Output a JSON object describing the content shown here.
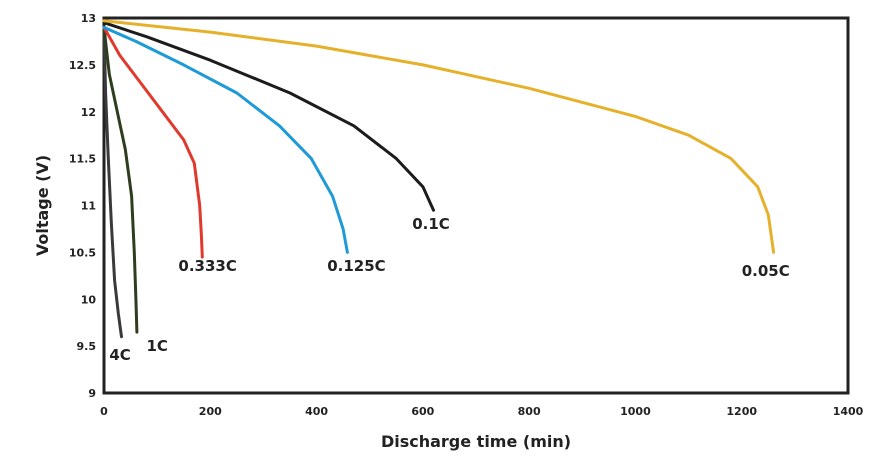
{
  "chart_data": {
    "type": "line",
    "title": "",
    "xlabel": "Discharge time (min)",
    "ylabel": "Voltage (V)",
    "xlim": [
      0,
      1400
    ],
    "ylim": [
      9,
      13
    ],
    "xticks": [
      0,
      200,
      400,
      600,
      800,
      1000,
      1200,
      1400
    ],
    "yticks": [
      9,
      9.5,
      10,
      10.5,
      11,
      11.5,
      12,
      12.5,
      13
    ],
    "grid": false,
    "legend": "none",
    "series": [
      {
        "name": "4C",
        "color": "#3a3a3a",
        "points": [
          [
            0,
            12.9
          ],
          [
            3,
            12.2
          ],
          [
            8,
            11.5
          ],
          [
            14,
            10.8
          ],
          [
            20,
            10.2
          ],
          [
            27,
            9.85
          ],
          [
            33,
            9.6
          ]
        ]
      },
      {
        "name": "1C",
        "color": "#2e3d1e",
        "points": [
          [
            0,
            12.9
          ],
          [
            10,
            12.4
          ],
          [
            25,
            12.0
          ],
          [
            40,
            11.6
          ],
          [
            52,
            11.1
          ],
          [
            57,
            10.5
          ],
          [
            60,
            10.0
          ],
          [
            62,
            9.65
          ]
        ]
      },
      {
        "name": "0.333C",
        "color": "#e03a2e",
        "points": [
          [
            0,
            12.9
          ],
          [
            30,
            12.6
          ],
          [
            70,
            12.3
          ],
          [
            110,
            12.0
          ],
          [
            150,
            11.7
          ],
          [
            170,
            11.45
          ],
          [
            180,
            11.0
          ],
          [
            183,
            10.7
          ],
          [
            185,
            10.45
          ]
        ]
      },
      {
        "name": "0.125C",
        "color": "#1e9ad6",
        "points": [
          [
            0,
            12.9
          ],
          [
            60,
            12.75
          ],
          [
            150,
            12.5
          ],
          [
            250,
            12.2
          ],
          [
            330,
            11.85
          ],
          [
            390,
            11.5
          ],
          [
            430,
            11.1
          ],
          [
            450,
            10.75
          ],
          [
            458,
            10.5
          ]
        ]
      },
      {
        "name": "0.1C",
        "color": "#1c1c1c",
        "points": [
          [
            0,
            12.95
          ],
          [
            80,
            12.8
          ],
          [
            200,
            12.55
          ],
          [
            350,
            12.2
          ],
          [
            470,
            11.85
          ],
          [
            550,
            11.5
          ],
          [
            600,
            11.2
          ],
          [
            620,
            10.95
          ]
        ]
      },
      {
        "name": "0.05C",
        "color": "#e6b12a",
        "points": [
          [
            0,
            12.97
          ],
          [
            200,
            12.85
          ],
          [
            400,
            12.7
          ],
          [
            600,
            12.5
          ],
          [
            800,
            12.25
          ],
          [
            1000,
            11.95
          ],
          [
            1100,
            11.75
          ],
          [
            1180,
            11.5
          ],
          [
            1230,
            11.2
          ],
          [
            1250,
            10.9
          ],
          [
            1260,
            10.5
          ]
        ]
      }
    ],
    "annotations": [
      {
        "text": "4C",
        "series": "4C",
        "x": 10,
        "y": 9.35
      },
      {
        "text": "1C",
        "series": "1C",
        "x": 80,
        "y": 9.45
      },
      {
        "text": "0.333C",
        "series": "0.333C",
        "x": 140,
        "y": 10.3
      },
      {
        "text": "0.125C",
        "series": "0.125C",
        "x": 420,
        "y": 10.3
      },
      {
        "text": "0.1C",
        "series": "0.1C",
        "x": 580,
        "y": 10.75
      },
      {
        "text": "0.05C",
        "series": "0.05C",
        "x": 1200,
        "y": 10.25
      }
    ]
  }
}
